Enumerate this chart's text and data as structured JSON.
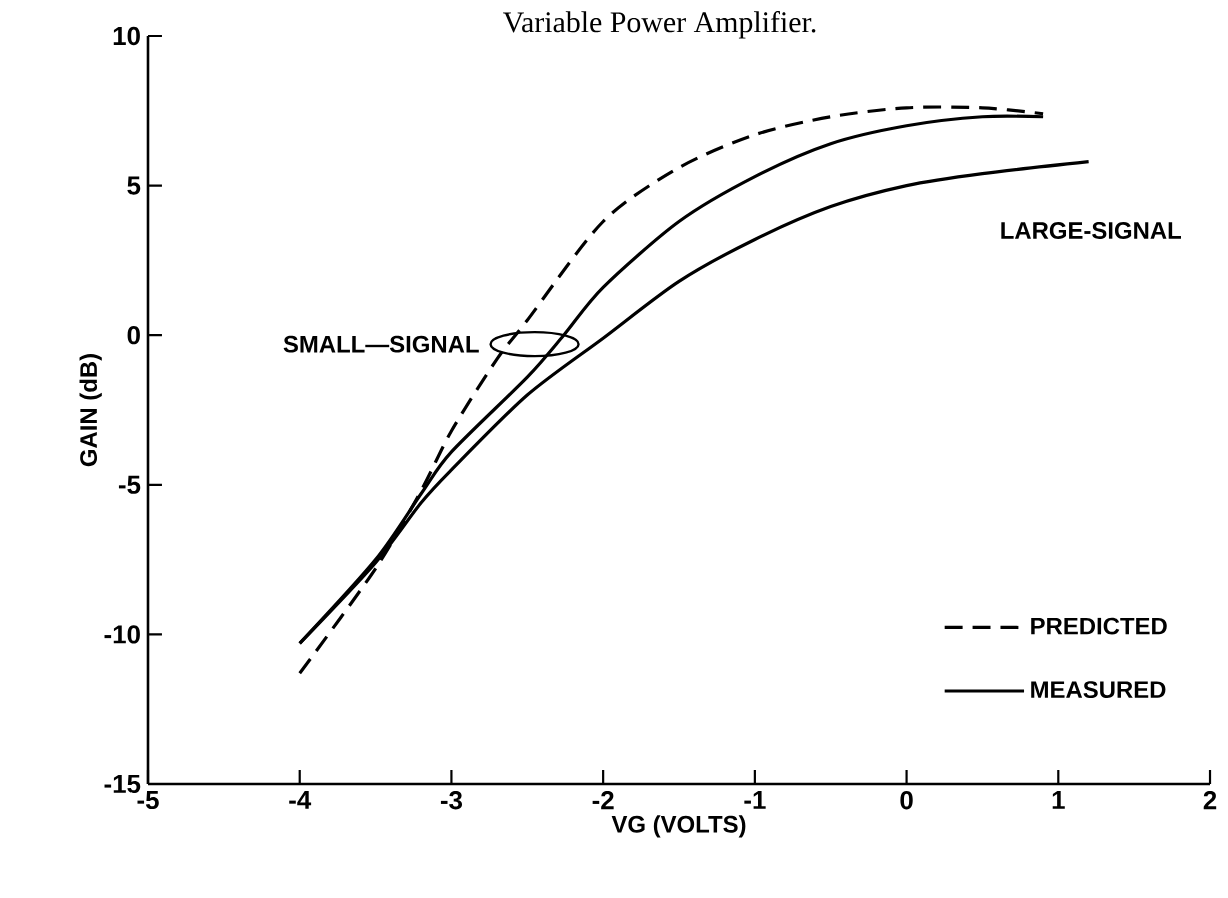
{
  "chart_data": {
    "type": "line",
    "title": "Variable Power Amplifier.",
    "xlabel": "VG  (VOLTS)",
    "ylabel": "GAIN (dB)",
    "xlim": [
      -5,
      2
    ],
    "ylim": [
      -15,
      10
    ],
    "xticks": [
      -5,
      -4,
      -3,
      -2,
      -1,
      0,
      1,
      2
    ],
    "yticks": [
      -15,
      -10,
      -5,
      0,
      5,
      10
    ],
    "grid": false,
    "legend": "bottom right",
    "marker": "none",
    "annotations": [
      "SMALL—SIGNAL",
      "LARGE-SIGNAL"
    ],
    "series": [
      {
        "name": "PREDICTED",
        "color": "#000000",
        "line_style": "dashed",
        "x": [
          -4,
          -3.5,
          -3.2,
          -3,
          -2.7,
          -2.5,
          -2,
          -1.5,
          -1,
          -0.5,
          0,
          0.5,
          0.9
        ],
        "values": [
          -11.3,
          -7.8,
          -5.2,
          -3.2,
          -0.8,
          0.5,
          3.8,
          5.6,
          6.7,
          7.3,
          7.6,
          7.6,
          7.4
        ]
      },
      {
        "name": "MEASURED",
        "color": "#000000",
        "line_style": "solid",
        "x": [
          -4,
          -3.5,
          -3.2,
          -3,
          -2.5,
          -2.26,
          -2,
          -1.5,
          -1,
          -0.5,
          0,
          0.5,
          0.9
        ],
        "values": [
          -10.3,
          -7.5,
          -5.3,
          -3.9,
          -1.4,
          0,
          1.6,
          3.8,
          5.3,
          6.4,
          7.0,
          7.3,
          7.3
        ]
      },
      {
        "color": "#000000",
        "line_style": "solid",
        "x": [
          -4,
          -3.5,
          -3.2,
          -3,
          -2.5,
          -2,
          -1.5,
          -1,
          -0.5,
          0,
          0.5,
          1.2
        ],
        "values": [
          -10.3,
          -7.6,
          -5.6,
          -4.5,
          -2.0,
          -0.1,
          1.8,
          3.2,
          4.3,
          5.0,
          5.4,
          5.8
        ]
      }
    ]
  }
}
